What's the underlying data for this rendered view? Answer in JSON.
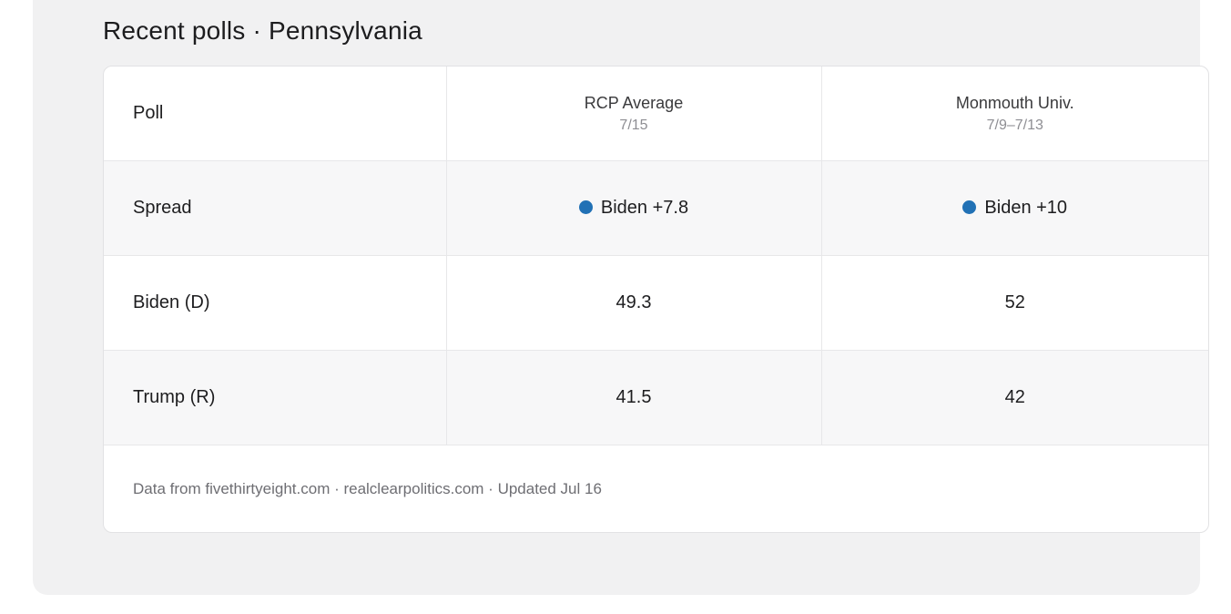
{
  "section": {
    "title": "Recent polls · Pennsylvania"
  },
  "table": {
    "columns": [
      {
        "label": "Poll"
      },
      {
        "label": "RCP Average",
        "date": "7/15"
      },
      {
        "label": "Monmouth Univ.",
        "date": "7/9–7/13"
      }
    ],
    "rows": [
      {
        "label": "Spread",
        "values": [
          "Biden +7.8",
          "Biden +10"
        ],
        "leader_dot": true
      },
      {
        "label": "Biden (D)",
        "values": [
          "49.3",
          "52"
        ]
      },
      {
        "label": "Trump (R)",
        "values": [
          "41.5",
          "42"
        ]
      }
    ],
    "footer": "Data from fivethirtyeight.com · realclearpolitics.com · Updated Jul 16"
  },
  "colors": {
    "dot_blue": "#2171b5"
  }
}
